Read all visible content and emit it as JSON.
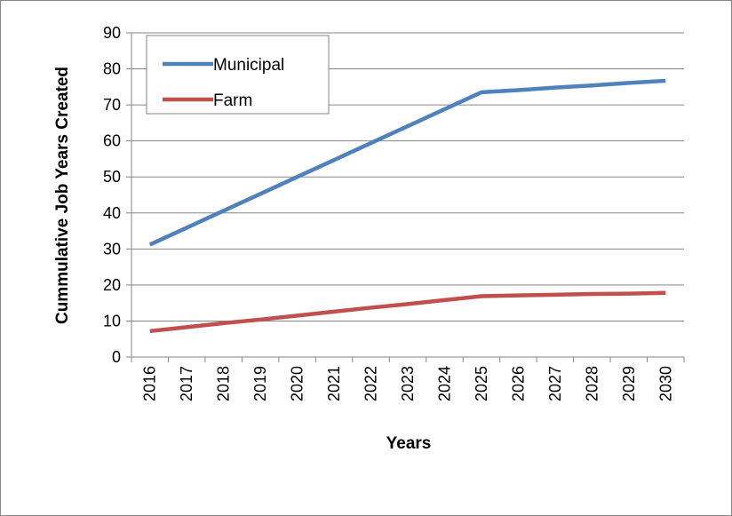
{
  "chart_data": {
    "type": "line",
    "categories": [
      "2016",
      "2017",
      "2018",
      "2019",
      "2020",
      "2021",
      "2022",
      "2023",
      "2024",
      "2025",
      "2026",
      "2027",
      "2028",
      "2029",
      "2030"
    ],
    "series": [
      {
        "name": "Municipal",
        "color": "#4f81bd",
        "values": [
          31.2,
          35.9,
          40.6,
          45.3,
          50.0,
          54.7,
          59.4,
          64.1,
          68.8,
          73.5,
          74.1,
          74.8,
          75.4,
          76.1,
          76.7
        ]
      },
      {
        "name": "Farm",
        "color": "#c0504d",
        "values": [
          7.2,
          8.3,
          9.4,
          10.4,
          11.5,
          12.6,
          13.7,
          14.7,
          15.8,
          16.9,
          17.1,
          17.3,
          17.5,
          17.6,
          17.8
        ]
      }
    ],
    "ylim": [
      0,
      90
    ],
    "yticks": [
      0,
      10,
      20,
      30,
      40,
      50,
      60,
      70,
      80,
      90
    ],
    "grid": true,
    "legend": "upper left",
    "xlabel": "Years",
    "ylabel": "Cummulative Job Years Created"
  }
}
